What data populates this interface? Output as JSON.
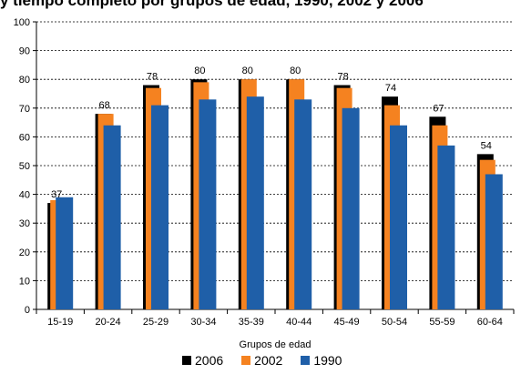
{
  "title": "y tiempo completo por grupos de edad, 1990, 2002 y 2006",
  "chart_data": {
    "type": "bar",
    "title": "y tiempo completo por grupos de edad, 1990, 2002 y 2006",
    "xlabel": "Grupos de edad",
    "ylabel": "",
    "ylim": [
      0,
      100
    ],
    "yticks": [
      0,
      10,
      20,
      30,
      40,
      50,
      60,
      70,
      80,
      90,
      100
    ],
    "grid": "horizontal dashed",
    "legend_position": "bottom",
    "categories": [
      "15-19",
      "20-24",
      "25-29",
      "30-34",
      "35-39",
      "40-44",
      "45-49",
      "50-54",
      "55-59",
      "60-64"
    ],
    "series": [
      {
        "name": "2006",
        "color": "#000000",
        "values": [
          37,
          68,
          78,
          80,
          80,
          80,
          78,
          74,
          67,
          54
        ],
        "data_labels": [
          "37",
          "68",
          "78",
          "80",
          "80",
          "80",
          "78",
          "74",
          "67",
          "54"
        ]
      },
      {
        "name": "2002",
        "color": "#f58220",
        "values": [
          38,
          68,
          77,
          79,
          80,
          80,
          77,
          71,
          64,
          52
        ]
      },
      {
        "name": "1990",
        "color": "#1f5fa8",
        "values": [
          39,
          64,
          71,
          73,
          74,
          73,
          70,
          64,
          57,
          47
        ]
      }
    ]
  }
}
